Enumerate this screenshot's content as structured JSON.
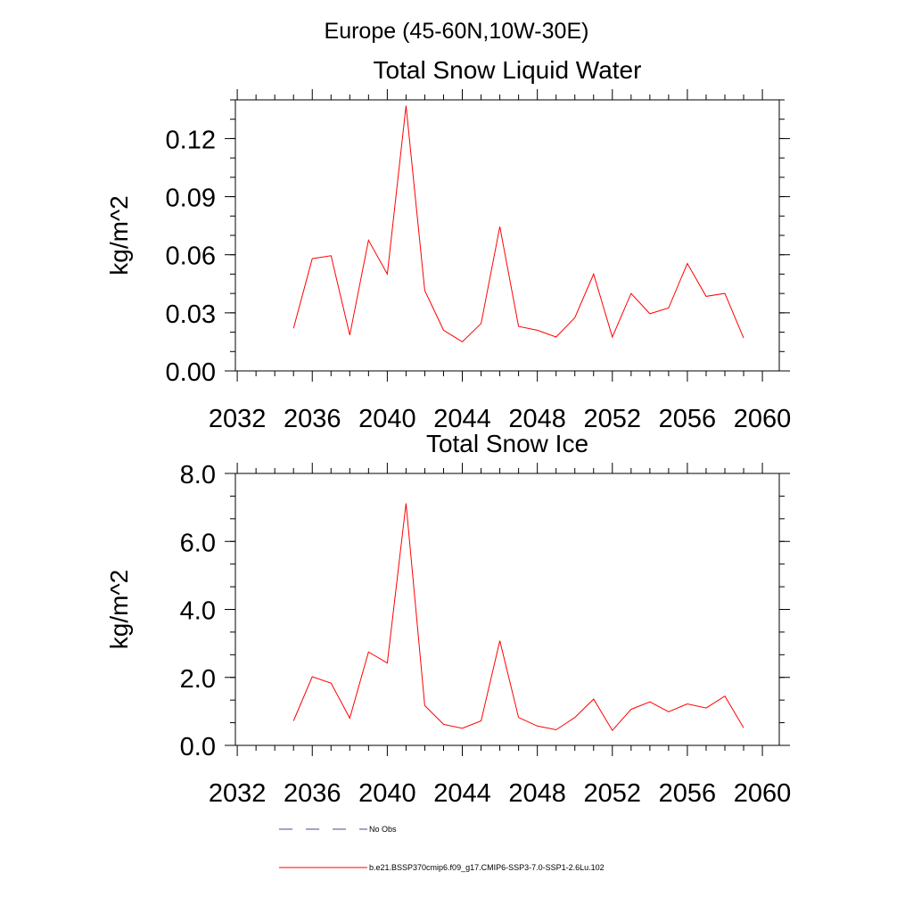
{
  "figure": {
    "suptitle": "Europe (45-60N,10W-30E)"
  },
  "legend": {
    "entries": [
      {
        "label": "No Obs",
        "color": "#4a4a8a",
        "style": "dashed"
      },
      {
        "label": "b.e21.BSSP370cmip6.f09_g17.CMIP6-SSP3-7.0-SSP1-2.6Lu.102",
        "color": "#ff0000",
        "style": "solid"
      }
    ]
  },
  "chart_data": [
    {
      "type": "line",
      "title": "Total Snow Liquid Water",
      "xlabel": "",
      "ylabel": "kg/m^2",
      "xlim": [
        2031.9,
        2060.9
      ],
      "ylim": [
        0.0,
        0.14
      ],
      "xticks": [
        2032,
        2036,
        2040,
        2044,
        2048,
        2052,
        2056,
        2060
      ],
      "xtick_labels": [
        "2032",
        "2036",
        "2040",
        "2044",
        "2048",
        "2052",
        "2056",
        "2060"
      ],
      "yticks": [
        0.0,
        0.03,
        0.06,
        0.09,
        0.12
      ],
      "ytick_labels": [
        "0.00",
        "0.03",
        "0.06",
        "0.09",
        "0.12"
      ],
      "grid": false,
      "x": [
        2035,
        2036,
        2037,
        2038,
        2039,
        2040,
        2041,
        2042,
        2043,
        2044,
        2045,
        2046,
        2047,
        2048,
        2049,
        2050,
        2051,
        2052,
        2053,
        2054,
        2055,
        2056,
        2057,
        2058,
        2059
      ],
      "series": [
        {
          "color": "#ff0000",
          "values": [
            0.022,
            0.058,
            0.0595,
            0.0185,
            0.0675,
            0.05,
            0.137,
            0.0415,
            0.021,
            0.015,
            0.0245,
            0.0745,
            0.023,
            0.021,
            0.0175,
            0.0275,
            0.05,
            0.0175,
            0.04,
            0.0295,
            0.0325,
            0.0555,
            0.0385,
            0.04,
            0.017
          ]
        }
      ]
    },
    {
      "type": "line",
      "title": "Total Snow Ice",
      "xlabel": "",
      "ylabel": "kg/m^2",
      "xlim": [
        2031.9,
        2060.9
      ],
      "ylim": [
        0.0,
        8.0
      ],
      "xticks": [
        2032,
        2036,
        2040,
        2044,
        2048,
        2052,
        2056,
        2060
      ],
      "xtick_labels": [
        "2032",
        "2036",
        "2040",
        "2044",
        "2048",
        "2052",
        "2056",
        "2060"
      ],
      "yticks": [
        0.0,
        2.0,
        4.0,
        6.0,
        8.0
      ],
      "ytick_labels": [
        "0.0",
        "2.0",
        "4.0",
        "6.0",
        "8.0"
      ],
      "grid": false,
      "x": [
        2035,
        2036,
        2037,
        2038,
        2039,
        2040,
        2041,
        2042,
        2043,
        2044,
        2045,
        2046,
        2047,
        2048,
        2049,
        2050,
        2051,
        2052,
        2053,
        2054,
        2055,
        2056,
        2057,
        2058,
        2059
      ],
      "series": [
        {
          "color": "#ff0000",
          "values": [
            0.72,
            2.02,
            1.83,
            0.8,
            2.75,
            2.42,
            7.12,
            1.17,
            0.62,
            0.5,
            0.72,
            3.08,
            0.82,
            0.57,
            0.46,
            0.82,
            1.36,
            0.44,
            1.06,
            1.28,
            0.99,
            1.22,
            1.1,
            1.45,
            0.52
          ]
        }
      ]
    }
  ]
}
